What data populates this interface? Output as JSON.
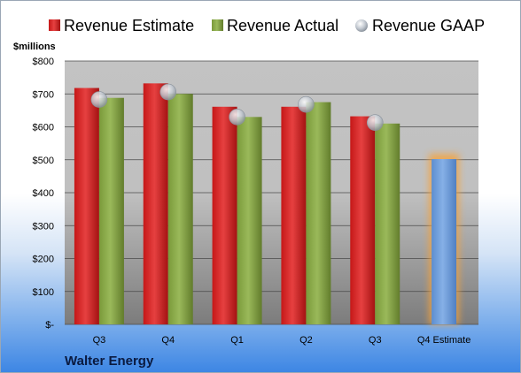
{
  "company": "Walter Energy",
  "colors": {
    "estimate": "#cc2222",
    "actual": "#7a9a3a",
    "gaap": "#b4bcc6",
    "q4_estimate": "#6e9fdc",
    "q4_glow": "#f5a23a"
  },
  "chart_data": {
    "type": "bar",
    "ylabel": "$millions",
    "ylim": [
      0,
      800
    ],
    "yticks": [
      0,
      100,
      200,
      300,
      400,
      500,
      600,
      700,
      800
    ],
    "ytick_labels": [
      "$-",
      "$100",
      "$200",
      "$300",
      "$400",
      "$500",
      "$600",
      "$700",
      "$800"
    ],
    "categories": [
      "Q3",
      "Q4",
      "Q1",
      "Q2",
      "Q3",
      "Q4 Estimate"
    ],
    "series": [
      {
        "name": "Revenue Estimate",
        "values": [
          718,
          732,
          661,
          661,
          632,
          null
        ]
      },
      {
        "name": "Revenue Actual",
        "values": [
          688,
          700,
          630,
          675,
          610,
          null
        ]
      },
      {
        "name": "Revenue GAAP",
        "values": [
          683,
          706,
          630,
          668,
          613,
          null
        ]
      }
    ],
    "q4_estimate_value": 502,
    "grid": true,
    "legend_position": "top"
  }
}
